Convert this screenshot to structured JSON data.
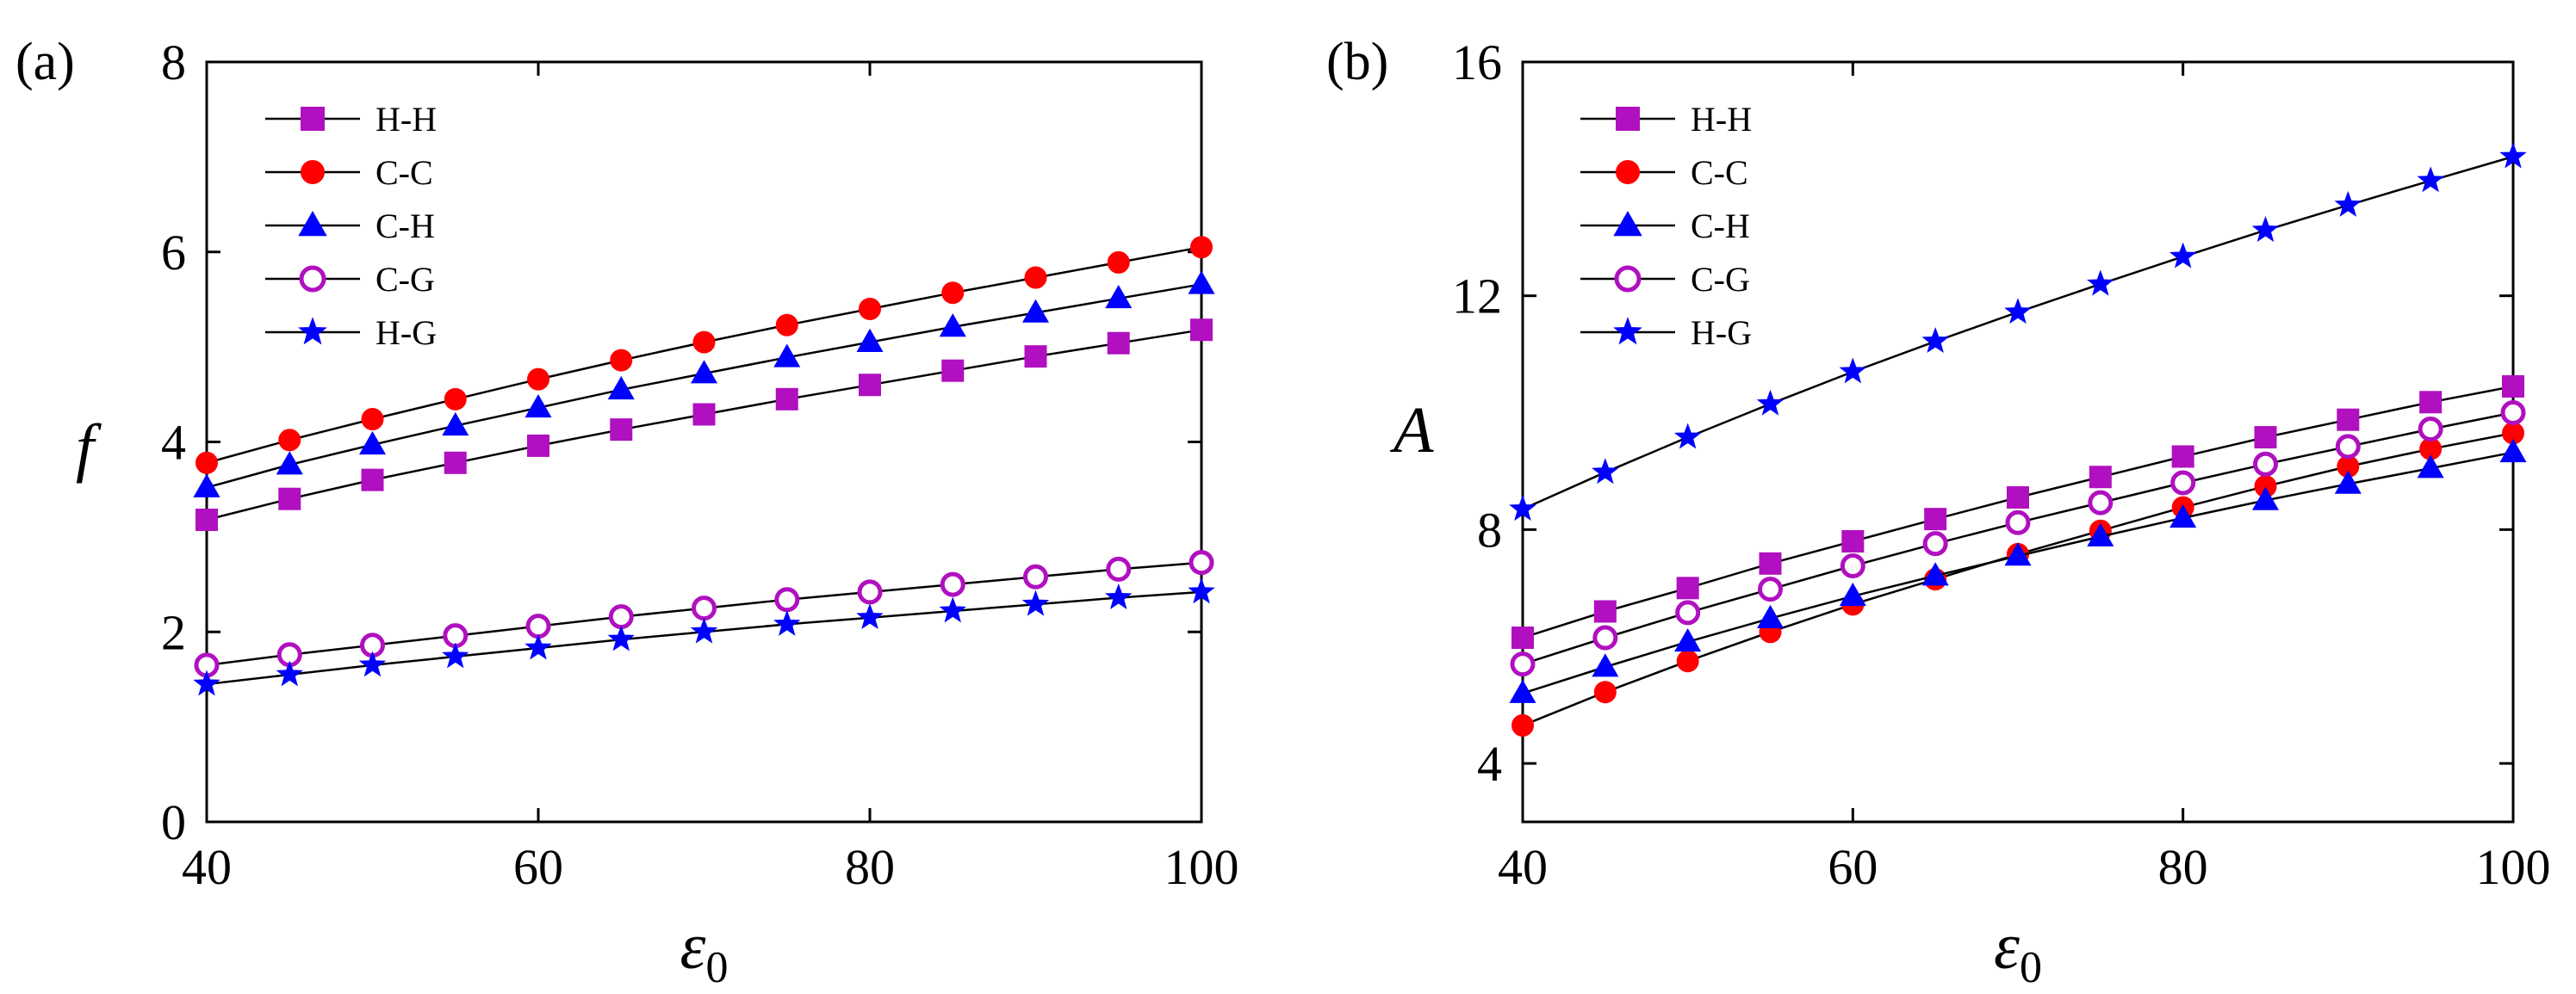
{
  "chart_data": [
    {
      "panel_label": "(a)",
      "type": "line",
      "xlabel": "ε",
      "xlabel_subscript": "0",
      "ylabel": "f",
      "xlim": [
        40,
        100
      ],
      "ylim": [
        0,
        8
      ],
      "xticks": [
        40,
        60,
        80,
        100
      ],
      "yticks": [
        0,
        2,
        4,
        6,
        8
      ],
      "x": [
        40,
        45,
        50,
        55,
        60,
        65,
        70,
        75,
        80,
        85,
        90,
        95,
        100
      ],
      "legend_position": "top-left",
      "series": [
        {
          "name": "H-H",
          "marker": "square",
          "filled": true,
          "color": "#b010c0",
          "values": [
            3.18,
            3.4,
            3.6,
            3.78,
            3.96,
            4.13,
            4.29,
            4.45,
            4.6,
            4.75,
            4.9,
            5.04,
            5.18
          ]
        },
        {
          "name": "C-C",
          "marker": "circle",
          "filled": true,
          "color": "#ff0000",
          "values": [
            3.78,
            4.02,
            4.24,
            4.45,
            4.66,
            4.86,
            5.05,
            5.23,
            5.4,
            5.57,
            5.73,
            5.89,
            6.05
          ]
        },
        {
          "name": "C-H",
          "marker": "triangle",
          "filled": true,
          "color": "#0000ff",
          "values": [
            3.52,
            3.76,
            3.97,
            4.17,
            4.36,
            4.55,
            4.72,
            4.89,
            5.05,
            5.21,
            5.36,
            5.51,
            5.66
          ]
        },
        {
          "name": "C-G",
          "marker": "circle",
          "filled": false,
          "color": "#b010c0",
          "values": [
            1.65,
            1.76,
            1.86,
            1.96,
            2.06,
            2.16,
            2.25,
            2.34,
            2.42,
            2.5,
            2.58,
            2.66,
            2.73
          ]
        },
        {
          "name": "H-G",
          "marker": "star",
          "filled": true,
          "color": "#0000ff",
          "values": [
            1.45,
            1.55,
            1.65,
            1.74,
            1.83,
            1.92,
            2.0,
            2.08,
            2.15,
            2.22,
            2.29,
            2.36,
            2.42
          ]
        }
      ]
    },
    {
      "panel_label": "(b)",
      "type": "line",
      "xlabel": "ε",
      "xlabel_subscript": "0",
      "ylabel": "A",
      "xlim": [
        40,
        100
      ],
      "ylim": [
        3,
        16
      ],
      "xticks": [
        40,
        60,
        80,
        100
      ],
      "yticks": [
        4,
        8,
        12,
        16
      ],
      "x": [
        40,
        45,
        50,
        55,
        60,
        65,
        70,
        75,
        80,
        85,
        90,
        95,
        100
      ],
      "legend_position": "top-left",
      "series": [
        {
          "name": "H-H",
          "marker": "square",
          "filled": true,
          "color": "#b010c0",
          "values": [
            6.15,
            6.6,
            7.0,
            7.42,
            7.8,
            8.18,
            8.55,
            8.9,
            9.25,
            9.58,
            9.88,
            10.18,
            10.45
          ]
        },
        {
          "name": "C-C",
          "marker": "circle",
          "filled": true,
          "color": "#ff0000",
          "values": [
            4.65,
            5.22,
            5.75,
            6.25,
            6.72,
            7.15,
            7.58,
            7.98,
            8.38,
            8.74,
            9.08,
            9.38,
            9.65
          ]
        },
        {
          "name": "C-H",
          "marker": "triangle",
          "filled": true,
          "color": "#0000ff",
          "values": [
            5.2,
            5.65,
            6.08,
            6.48,
            6.86,
            7.21,
            7.55,
            7.88,
            8.2,
            8.5,
            8.78,
            9.05,
            9.32
          ]
        },
        {
          "name": "C-G",
          "marker": "circle",
          "filled": false,
          "color": "#b010c0",
          "values": [
            5.7,
            6.15,
            6.58,
            6.98,
            7.38,
            7.76,
            8.12,
            8.46,
            8.8,
            9.12,
            9.42,
            9.72,
            10.0
          ]
        },
        {
          "name": "H-G",
          "marker": "star",
          "filled": true,
          "color": "#0000ff",
          "values": [
            8.35,
            8.98,
            9.58,
            10.15,
            10.7,
            11.22,
            11.72,
            12.2,
            12.67,
            13.12,
            13.55,
            13.97,
            14.38
          ]
        }
      ]
    }
  ]
}
